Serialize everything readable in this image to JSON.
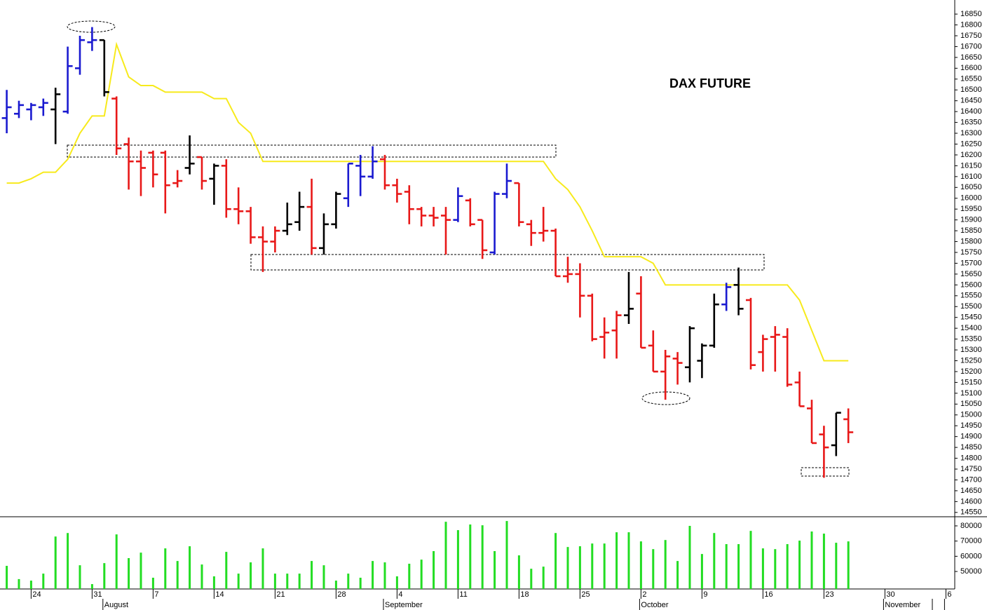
{
  "chart_data": {
    "type": "ohlc",
    "title": "DAX FUTURE",
    "categories": [
      null,
      null,
      "24",
      null,
      null,
      null,
      null,
      "31",
      null,
      null,
      null,
      null,
      "7",
      null,
      null,
      null,
      null,
      "14",
      null,
      null,
      null,
      null,
      "21",
      null,
      null,
      null,
      null,
      "28",
      null,
      null,
      null,
      null,
      "4",
      null,
      null,
      null,
      null,
      "11",
      null,
      null,
      null,
      null,
      "18",
      null,
      null,
      null,
      null,
      "25",
      null,
      null,
      null,
      null,
      "2",
      null,
      null,
      null,
      null,
      "9",
      null,
      null,
      null,
      null,
      "16",
      null,
      null,
      null,
      null,
      "23",
      null,
      null,
      null,
      null,
      "30",
      null,
      null,
      null,
      null,
      "6"
    ],
    "month_labels": [
      null,
      null,
      null,
      null,
      null,
      null,
      null,
      null,
      "August",
      null,
      null,
      null,
      null,
      null,
      null,
      null,
      null,
      null,
      null,
      null,
      null,
      null,
      null,
      null,
      null,
      null,
      null,
      null,
      null,
      null,
      null,
      "September",
      null,
      null,
      null,
      null,
      null,
      null,
      null,
      null,
      null,
      null,
      null,
      null,
      null,
      null,
      null,
      null,
      null,
      null,
      null,
      null,
      "October",
      null,
      null,
      null,
      null,
      null,
      null,
      null,
      null,
      null,
      null,
      null,
      null,
      null,
      null,
      null,
      null,
      null,
      null,
      null,
      "November",
      null,
      null,
      null
    ],
    "open": [
      16370,
      16390,
      16410,
      16420,
      16410,
      16400,
      16600,
      16720,
      16730,
      16460,
      16250,
      16170,
      16210,
      16210,
      16070,
      16140,
      16190,
      16090,
      16150,
      15950,
      15940,
      15820,
      15800,
      15850,
      15890,
      15960,
      15770,
      15880,
      16000,
      16150,
      16100,
      16180,
      16060,
      16030,
      15950,
      15920,
      15920,
      15900,
      15990,
      15900,
      15750,
      16020,
      16070,
      15880,
      15840,
      15850,
      15640,
      15650,
      15550,
      15360,
      15390,
      15460,
      15560,
      15320,
      15200,
      15260,
      15220,
      15250,
      15320,
      15510,
      15600,
      15530,
      15290,
      15360,
      15360,
      15150,
      15030,
      14910,
      14860,
      14980,
      null,
      null,
      null,
      null,
      null,
      null,
      null,
      null
    ],
    "high": [
      16500,
      16450,
      16440,
      16460,
      16510,
      16700,
      16750,
      16790,
      16730,
      16470,
      16280,
      16220,
      16220,
      16220,
      16130,
      16290,
      16190,
      16160,
      16180,
      16050,
      15960,
      15870,
      15870,
      15980,
      16030,
      16090,
      15930,
      16030,
      16160,
      16200,
      16240,
      16200,
      16090,
      16060,
      15960,
      15960,
      15960,
      16050,
      16000,
      15900,
      16030,
      16160,
      16070,
      15900,
      15960,
      15860,
      15730,
      15700,
      15560,
      15450,
      15480,
      15660,
      15640,
      15390,
      15300,
      15290,
      15410,
      15330,
      15560,
      15610,
      15680,
      15540,
      15370,
      15410,
      15400,
      15200,
      15070,
      14950,
      15010,
      15030,
      null,
      null,
      null,
      null,
      null,
      null,
      null,
      null
    ],
    "low": [
      16300,
      16370,
      16360,
      16380,
      16250,
      16390,
      16570,
      16680,
      16470,
      16200,
      16040,
      16010,
      16050,
      15930,
      16050,
      16110,
      16040,
      15970,
      15910,
      15880,
      15790,
      15660,
      15750,
      15830,
      15850,
      15740,
      15740,
      15860,
      15960,
      16010,
      16090,
      16040,
      15980,
      15880,
      15870,
      15870,
      15740,
      15890,
      15870,
      15720,
      15740,
      16000,
      15870,
      15780,
      15800,
      15640,
      15610,
      15450,
      15340,
      15260,
      15260,
      15420,
      15310,
      15200,
      15070,
      15140,
      15150,
      15170,
      15310,
      15480,
      15460,
      15210,
      15200,
      15200,
      15130,
      15040,
      14870,
      14710,
      14810,
      14870,
      null,
      null,
      null,
      null,
      null,
      null,
      null,
      null
    ],
    "close": [
      16420,
      16430,
      16430,
      16440,
      16480,
      16610,
      16730,
      16730,
      16490,
      16230,
      16170,
      16140,
      16110,
      16060,
      16080,
      16160,
      16080,
      16150,
      15950,
      15940,
      15820,
      15800,
      15850,
      15880,
      15960,
      15770,
      15880,
      16020,
      16160,
      16100,
      16170,
      16060,
      16020,
      15950,
      15920,
      15910,
      15900,
      16010,
      15880,
      15760,
      16020,
      16080,
      15890,
      15840,
      15850,
      15640,
      15650,
      15550,
      15350,
      15380,
      15460,
      15490,
      15310,
      15200,
      15270,
      15240,
      15400,
      15320,
      15510,
      15590,
      15490,
      15230,
      15350,
      15370,
      15140,
      15040,
      14870,
      14850,
      15010,
      14920,
      null,
      null,
      null,
      null,
      null,
      null,
      null,
      null
    ],
    "colors": [
      "#1a1ad0",
      "#1a1ad0",
      "#1a1ad0",
      "#1a1ad0",
      "#000000",
      "#1a1ad0",
      "#1a1ad0",
      "#1a1ad0",
      "#000000",
      "#e81818",
      "#e81818",
      "#e81818",
      "#e81818",
      "#e81818",
      "#e81818",
      "#000000",
      "#e81818",
      "#000000",
      "#e81818",
      "#e81818",
      "#e81818",
      "#e81818",
      "#e81818",
      "#000000",
      "#000000",
      "#e81818",
      "#000000",
      "#000000",
      "#1a1ad0",
      "#1a1ad0",
      "#1a1ad0",
      "#e81818",
      "#e81818",
      "#e81818",
      "#e81818",
      "#e81818",
      "#e81818",
      "#1a1ad0",
      "#e81818",
      "#e81818",
      "#1a1ad0",
      "#1a1ad0",
      "#e81818",
      "#e81818",
      "#e81818",
      "#e81818",
      "#e81818",
      "#e81818",
      "#e81818",
      "#e81818",
      "#e81818",
      "#000000",
      "#e81818",
      "#e81818",
      "#e81818",
      "#e81818",
      "#000000",
      "#000000",
      "#000000",
      "#1a1ad0",
      "#000000",
      "#e81818",
      "#e81818",
      "#e81818",
      "#e81818",
      "#e81818",
      "#e81818",
      "#e81818",
      "#000000",
      "#e81818",
      null,
      null,
      null,
      null,
      null,
      null,
      null,
      null
    ],
    "overlay": {
      "type": "line",
      "color": "#f7ea1c",
      "values": [
        16070,
        16070,
        16090,
        16120,
        16120,
        16180,
        16300,
        16380,
        16380,
        16710,
        16560,
        16520,
        16520,
        16490,
        16490,
        16490,
        16490,
        16460,
        16460,
        16350,
        16300,
        16170,
        16170,
        16170,
        16170,
        16170,
        16170,
        16170,
        16170,
        16170,
        16170,
        16170,
        16170,
        16170,
        16170,
        16170,
        16170,
        16170,
        16170,
        16170,
        16170,
        16170,
        16170,
        16170,
        16170,
        16090,
        16040,
        15960,
        15850,
        15730,
        15730,
        15730,
        15730,
        15700,
        15600,
        15600,
        15600,
        15600,
        15600,
        15600,
        15600,
        15600,
        15600,
        15600,
        15600,
        15530,
        15390,
        15250,
        15250,
        15250,
        null,
        null,
        null,
        null,
        null,
        null,
        null,
        null
      ]
    },
    "ylim": [
      14530,
      16915
    ],
    "yticks": [
      14550,
      14600,
      14650,
      14700,
      14750,
      14800,
      14850,
      14900,
      14950,
      15000,
      15050,
      15100,
      15150,
      15200,
      15250,
      15300,
      15350,
      15400,
      15450,
      15500,
      15550,
      15600,
      15650,
      15700,
      15750,
      15800,
      15850,
      15900,
      15950,
      16000,
      16050,
      16100,
      16150,
      16200,
      16250,
      16300,
      16350,
      16400,
      16450,
      16500,
      16550,
      16600,
      16650,
      16700,
      16750,
      16800,
      16850
    ],
    "volume": {
      "type": "bar",
      "color": "#22dd22",
      "values": [
        53700,
        45000,
        44000,
        48600,
        73000,
        75300,
        54100,
        41700,
        55500,
        74400,
        58800,
        62400,
        45900,
        65200,
        56900,
        66600,
        54600,
        46800,
        62900,
        48600,
        56000,
        65200,
        48600,
        48600,
        48600,
        56900,
        54100,
        44000,
        48600,
        45900,
        56900,
        56000,
        46800,
        55100,
        57800,
        63400,
        82700,
        77200,
        80900,
        80400,
        63400,
        83200,
        60600,
        51800,
        53200,
        75300,
        66100,
        66600,
        68400,
        68400,
        75800,
        75800,
        69800,
        64700,
        70700,
        56900,
        80000,
        61500,
        75300,
        68000,
        68000,
        76700,
        65200,
        64700,
        68000,
        70300,
        76300,
        74900,
        68900,
        69800,
        null,
        null,
        null,
        null,
        null,
        null,
        null,
        null
      ]
    },
    "y2lim": [
      38500,
      86000
    ],
    "y2ticks": [
      50000,
      60000,
      70000,
      80000
    ]
  }
}
